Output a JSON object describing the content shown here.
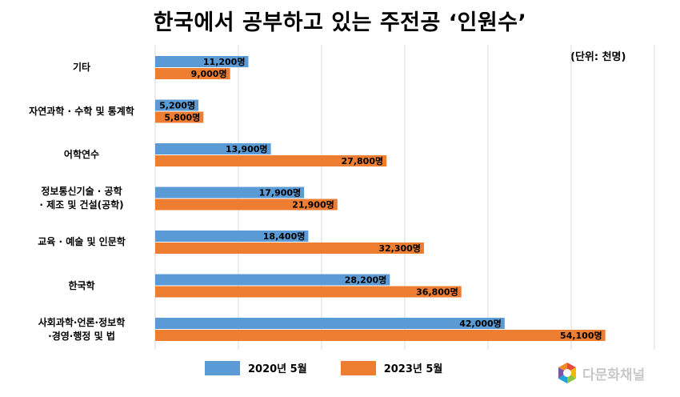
{
  "title": "한국에서 공부하고 있는 주전공 ‘인원수’",
  "unit_label": "(단위: 천명)",
  "logo_text": "다문화채널",
  "colors": {
    "series_2020": "#5b9bd5",
    "series_2023": "#ed7d31",
    "grid": "#d9d9d9"
  },
  "chart_data": {
    "type": "bar",
    "orientation": "horizontal",
    "title": "한국에서 공부하고 있는 주전공 ‘인원수’",
    "categories": [
      [
        "기타"
      ],
      [
        "자연과학 · 수학 및 통계학"
      ],
      [
        "어학연수"
      ],
      [
        "정보통신기술 · 공학",
        "· 제조 및 건설(공학)"
      ],
      [
        "교육 · 예술 및 인문학"
      ],
      [
        "한국학"
      ],
      [
        "사회과학·언론·정보학",
        "·경영·행정 및 법"
      ]
    ],
    "series": [
      {
        "name": "2020년 5월",
        "values": [
          11200,
          5200,
          13900,
          17900,
          18400,
          28200,
          42000
        ],
        "labels": [
          "11,200명",
          "5,200명",
          "13,900명",
          "17,900명",
          "18,400명",
          "28,200명",
          "42,000명"
        ]
      },
      {
        "name": "2023년 5월",
        "values": [
          9000,
          5800,
          27800,
          21900,
          32300,
          36800,
          54100
        ],
        "labels": [
          "9,000명",
          "5,800명",
          "27,800명",
          "21,900명",
          "32,300명",
          "36,800명",
          "54,100명"
        ]
      }
    ],
    "xlim": [
      0,
      60000
    ],
    "grid": true,
    "legend_position": "bottom"
  }
}
